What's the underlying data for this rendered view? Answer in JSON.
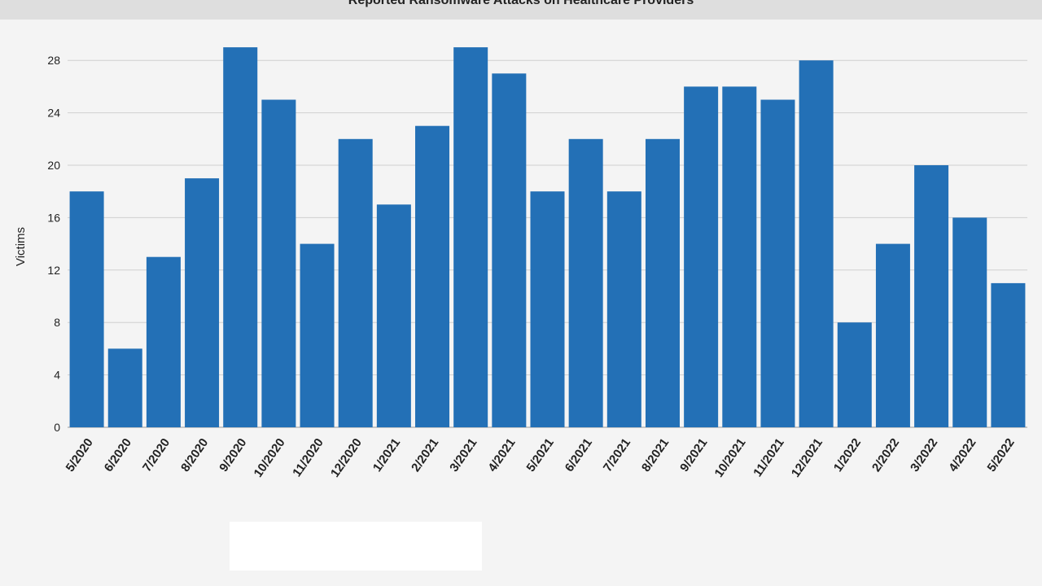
{
  "chart_data": {
    "type": "bar",
    "title": "Reported Ransomware Attacks on Healthcare Providers",
    "xlabel": "",
    "ylabel": "Victims",
    "ylim": [
      0,
      30
    ],
    "yticks": [
      0,
      4,
      8,
      12,
      16,
      20,
      24,
      28
    ],
    "grid": true,
    "bar_color": "#2370b6",
    "categories": [
      "5/2020",
      "6/2020",
      "7/2020",
      "8/2020",
      "9/2020",
      "10/2020",
      "11/2020",
      "12/2020",
      "1/2021",
      "2/2021",
      "3/2021",
      "4/2021",
      "5/2021",
      "6/2021",
      "7/2021",
      "8/2021",
      "9/2021",
      "10/2021",
      "11/2021",
      "12/2021",
      "1/2022",
      "2/2022",
      "3/2022",
      "4/2022",
      "5/2022"
    ],
    "values": [
      18,
      6,
      13,
      19,
      29,
      25,
      14,
      22,
      17,
      23,
      29,
      27,
      18,
      22,
      18,
      22,
      26,
      26,
      25,
      28,
      8,
      14,
      20,
      16,
      11
    ]
  }
}
